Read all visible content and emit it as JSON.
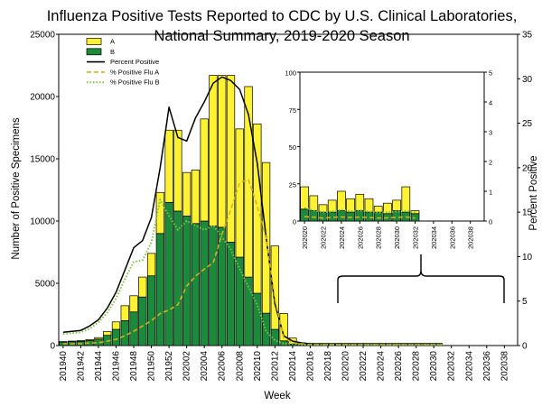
{
  "colors": {
    "fluA": "#fff233",
    "fluB": "#1b8a3a",
    "percentPositive": "#000000",
    "percentA": "#d4b21a",
    "percentB": "#7dc242",
    "barOutline": "#000000"
  },
  "chart_data": [
    {
      "id": "main",
      "type": "bar",
      "stacked": true,
      "title_lines": [
        "Influenza Positive Tests Reported to CDC by U.S. Clinical Laboratories,",
        "National Summary,  2019-2020 Season"
      ],
      "xlabel": "Week",
      "ylabel": "Number of Positive Specimens",
      "y2label": "Percent Positive",
      "ylim": [
        0,
        25000
      ],
      "yticks": [
        0,
        5000,
        10000,
        15000,
        20000,
        25000
      ],
      "y2lim": [
        0,
        35
      ],
      "y2ticks": [
        0,
        5,
        10,
        15,
        20,
        25,
        30,
        35
      ],
      "xtick_labels": [
        "201940",
        "201942",
        "201944",
        "201946",
        "201948",
        "201950",
        "201952",
        "202002",
        "202004",
        "202006",
        "202008",
        "202010",
        "202012",
        "202014",
        "202016",
        "202018",
        "202020",
        "202022",
        "202024",
        "202026",
        "202028",
        "202030",
        "202032",
        "202034",
        "202036",
        "202038"
      ],
      "categories": [
        "201940",
        "201941",
        "201942",
        "201943",
        "201944",
        "201945",
        "201946",
        "201947",
        "201948",
        "201949",
        "201950",
        "201951",
        "201952",
        "202001",
        "202002",
        "202003",
        "202004",
        "202005",
        "202006",
        "202007",
        "202008",
        "202009",
        "202010",
        "202011",
        "202012",
        "202013",
        "202014",
        "202015",
        "202016",
        "202017",
        "202018",
        "202019",
        "202020",
        "202021",
        "202022",
        "202023",
        "202024",
        "202025",
        "202026",
        "202027",
        "202028",
        "202029",
        "202030",
        "202031",
        "202032",
        "202033",
        "202034",
        "202035",
        "202036",
        "202037",
        "202038",
        "202039"
      ],
      "series": [
        {
          "name": "B",
          "kind": "bar",
          "values": [
            280,
            310,
            340,
            400,
            520,
            820,
            1300,
            2000,
            2700,
            3900,
            5600,
            9000,
            11500,
            10800,
            10400,
            9800,
            10000,
            9600,
            9500,
            8300,
            7100,
            5500,
            4200,
            2600,
            1300,
            380,
            120,
            60,
            40,
            25,
            25,
            20,
            18,
            12,
            14,
            12,
            14,
            12,
            12,
            10,
            10,
            14,
            8,
            6,
            0,
            0,
            0,
            0,
            0,
            0,
            0,
            0
          ]
        },
        {
          "name": "A",
          "kind": "bar",
          "values": [
            40,
            50,
            60,
            80,
            120,
            300,
            600,
            1200,
            1300,
            1600,
            1800,
            3300,
            5800,
            6500,
            3500,
            4300,
            8200,
            12100,
            12200,
            13400,
            10300,
            15300,
            13600,
            12100,
            6700,
            2200,
            480,
            160,
            70,
            50,
            45,
            40,
            37,
            22,
            16,
            14,
            14,
            10,
            8,
            12,
            8,
            9,
            6,
            5,
            0,
            0,
            0,
            0,
            0,
            0,
            0,
            0
          ]
        },
        {
          "name": "Percent Positive",
          "kind": "line",
          "axis": "right",
          "values": [
            1.5,
            1.6,
            1.7,
            2.2,
            2.9,
            4.2,
            6.0,
            8.5,
            11.0,
            11.8,
            14.4,
            20.0,
            26.8,
            23.4,
            23.0,
            25.6,
            27.4,
            29.5,
            30.2,
            29.8,
            28.8,
            26.0,
            20.5,
            12.2,
            4.7,
            1.1,
            0.5,
            0.3,
            0.2,
            0.2,
            0.2,
            0.2,
            0.2,
            0.2,
            0.2,
            0.2,
            0.2,
            0.2,
            0.2,
            0.2,
            0.2,
            0.2,
            0.2,
            0.2,
            null,
            null,
            null,
            null,
            null,
            null,
            null,
            null
          ]
        },
        {
          "name": "% Positive Flu A",
          "kind": "line",
          "axis": "right",
          "values": [
            0.2,
            0.2,
            0.2,
            0.3,
            0.3,
            0.5,
            0.7,
            1.1,
            1.6,
            2.2,
            2.8,
            3.6,
            4.0,
            4.6,
            6.7,
            7.8,
            8.6,
            9.3,
            12.5,
            15.3,
            18.3,
            18.7,
            15.7,
            12.1,
            5.2,
            0.9,
            0.3,
            0.2,
            0.1,
            0.1,
            0.1,
            0.1,
            0.1,
            0.1,
            0.1,
            0.1,
            0.1,
            0.1,
            0.1,
            0.1,
            0.1,
            0.1,
            0.1,
            0.1,
            null,
            null,
            null,
            null,
            null,
            null,
            null,
            null
          ]
        },
        {
          "name": "% Positive Flu B",
          "kind": "line",
          "axis": "right",
          "values": [
            1.3,
            1.4,
            1.5,
            1.9,
            2.6,
            3.7,
            5.3,
            7.5,
            9.4,
            9.6,
            11.6,
            16.4,
            14.6,
            13.0,
            14.0,
            13.5,
            13.0,
            13.5,
            12.2,
            10.8,
            8.6,
            6.6,
            4.6,
            1.6,
            0.6,
            0.2,
            0.2,
            0.1,
            0.1,
            0.1,
            0.1,
            0.1,
            0.1,
            0.1,
            0.1,
            0.1,
            0.1,
            0.1,
            0.1,
            0.1,
            0.1,
            0.1,
            0.1,
            0.1,
            null,
            null,
            null,
            null,
            null,
            null,
            null,
            null
          ]
        }
      ],
      "legend": {
        "placement": "top-left",
        "entries": [
          {
            "label": "A",
            "kind": "bar",
            "series": "A"
          },
          {
            "label": "B",
            "kind": "bar",
            "series": "B"
          },
          {
            "label": "Percent Positive",
            "kind": "line",
            "series": "Percent Positive"
          },
          {
            "label": "% Positive Flu A",
            "kind": "dash",
            "series": "% Positive Flu A"
          },
          {
            "label": "% Positive Flu B",
            "kind": "dot",
            "series": "% Positive Flu B"
          }
        ]
      }
    },
    {
      "id": "inset",
      "type": "bar",
      "stacked": true,
      "ylim": [
        0,
        100
      ],
      "yticks": [
        0,
        25,
        50,
        75,
        100
      ],
      "y2lim": [
        0,
        5
      ],
      "y2ticks": [
        0,
        1,
        2,
        3,
        4,
        5
      ],
      "xtick_labels": [
        "202020",
        "202022",
        "202024",
        "202026",
        "202028",
        "202030",
        "202032",
        "202034",
        "202036",
        "202038"
      ],
      "categories": [
        "202020",
        "202021",
        "202022",
        "202023",
        "202024",
        "202025",
        "202026",
        "202027",
        "202028",
        "202029",
        "202030",
        "202031",
        "202032",
        "202033",
        "202034",
        "202035",
        "202036",
        "202037",
        "202038",
        "202039"
      ],
      "series": [
        {
          "name": "B",
          "kind": "bar",
          "values": [
            8,
            7,
            6,
            6,
            7,
            6,
            7,
            6,
            6,
            5,
            7,
            6,
            5,
            0,
            0,
            0,
            0,
            0,
            0,
            0
          ]
        },
        {
          "name": "A",
          "kind": "bar",
          "values": [
            15,
            10,
            5,
            8,
            13,
            9,
            11,
            9,
            4,
            7,
            7,
            17,
            2,
            0,
            0,
            0,
            0,
            0,
            0,
            0
          ]
        },
        {
          "name": "% Positive Flu A",
          "kind": "line",
          "axis": "right",
          "values": [
            0.15,
            0.13,
            0.1,
            0.12,
            0.14,
            0.12,
            0.13,
            0.12,
            0.1,
            0.11,
            0.12,
            0.14,
            0.1,
            null,
            null,
            null,
            null,
            null,
            null,
            null
          ]
        },
        {
          "name": "% Positive Flu B",
          "kind": "line",
          "axis": "right",
          "values": [
            0.45,
            0.35,
            0.3,
            0.32,
            0.38,
            0.33,
            0.36,
            0.32,
            0.28,
            0.3,
            0.32,
            0.34,
            0.3,
            null,
            null,
            null,
            null,
            null,
            null,
            null
          ]
        }
      ]
    }
  ]
}
